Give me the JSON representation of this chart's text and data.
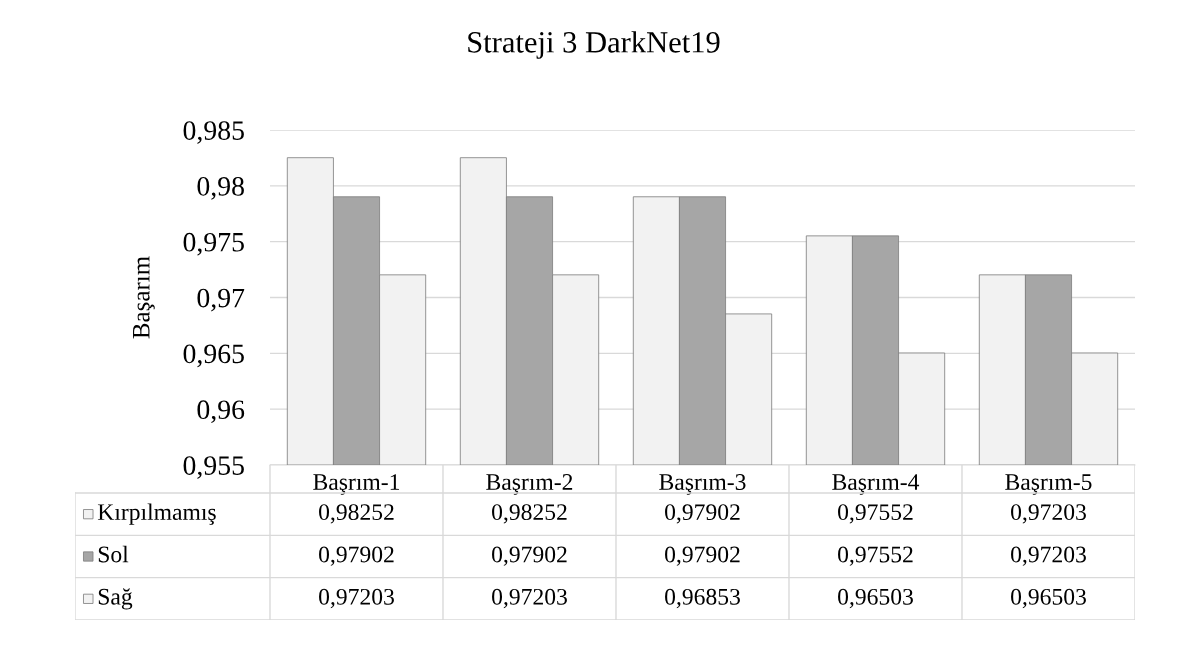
{
  "chart_data": {
    "type": "bar",
    "title": "Strateji 3 DarkNet19",
    "ylabel": "Başarım",
    "categories": [
      "Başrım-1",
      "Başrım-2",
      "Başrım-3",
      "Başrım-4",
      "Başrım-5"
    ],
    "series": [
      {
        "name": "Kırpılmamış",
        "color": "#f2f2f2",
        "values": [
          0.98252,
          0.98252,
          0.97902,
          0.97552,
          0.97203
        ],
        "value_labels": [
          "0,98252",
          "0,98252",
          "0,97902",
          "0,97552",
          "0,97203"
        ]
      },
      {
        "name": "Sol",
        "color": "#a6a6a6",
        "values": [
          0.97902,
          0.97902,
          0.97902,
          0.97552,
          0.97203
        ],
        "value_labels": [
          "0,97902",
          "0,97902",
          "0,97902",
          "0,97552",
          "0,97203"
        ]
      },
      {
        "name": "Sağ",
        "color": "#f2f2f2",
        "values": [
          0.97203,
          0.97203,
          0.96853,
          0.96503,
          0.96503
        ],
        "value_labels": [
          "0,97203",
          "0,97203",
          "0,96853",
          "0,96503",
          "0,96503"
        ]
      }
    ],
    "ylim": [
      0.955,
      0.985
    ],
    "yticks": [
      {
        "value": 0.955,
        "label": "0,955"
      },
      {
        "value": 0.96,
        "label": "0,96"
      },
      {
        "value": 0.965,
        "label": "0,965"
      },
      {
        "value": 0.97,
        "label": "0,97"
      },
      {
        "value": 0.975,
        "label": "0,975"
      },
      {
        "value": 0.98,
        "label": "0,98"
      },
      {
        "value": 0.985,
        "label": "0,985"
      }
    ],
    "grid": "y",
    "legend": "bottom left"
  }
}
